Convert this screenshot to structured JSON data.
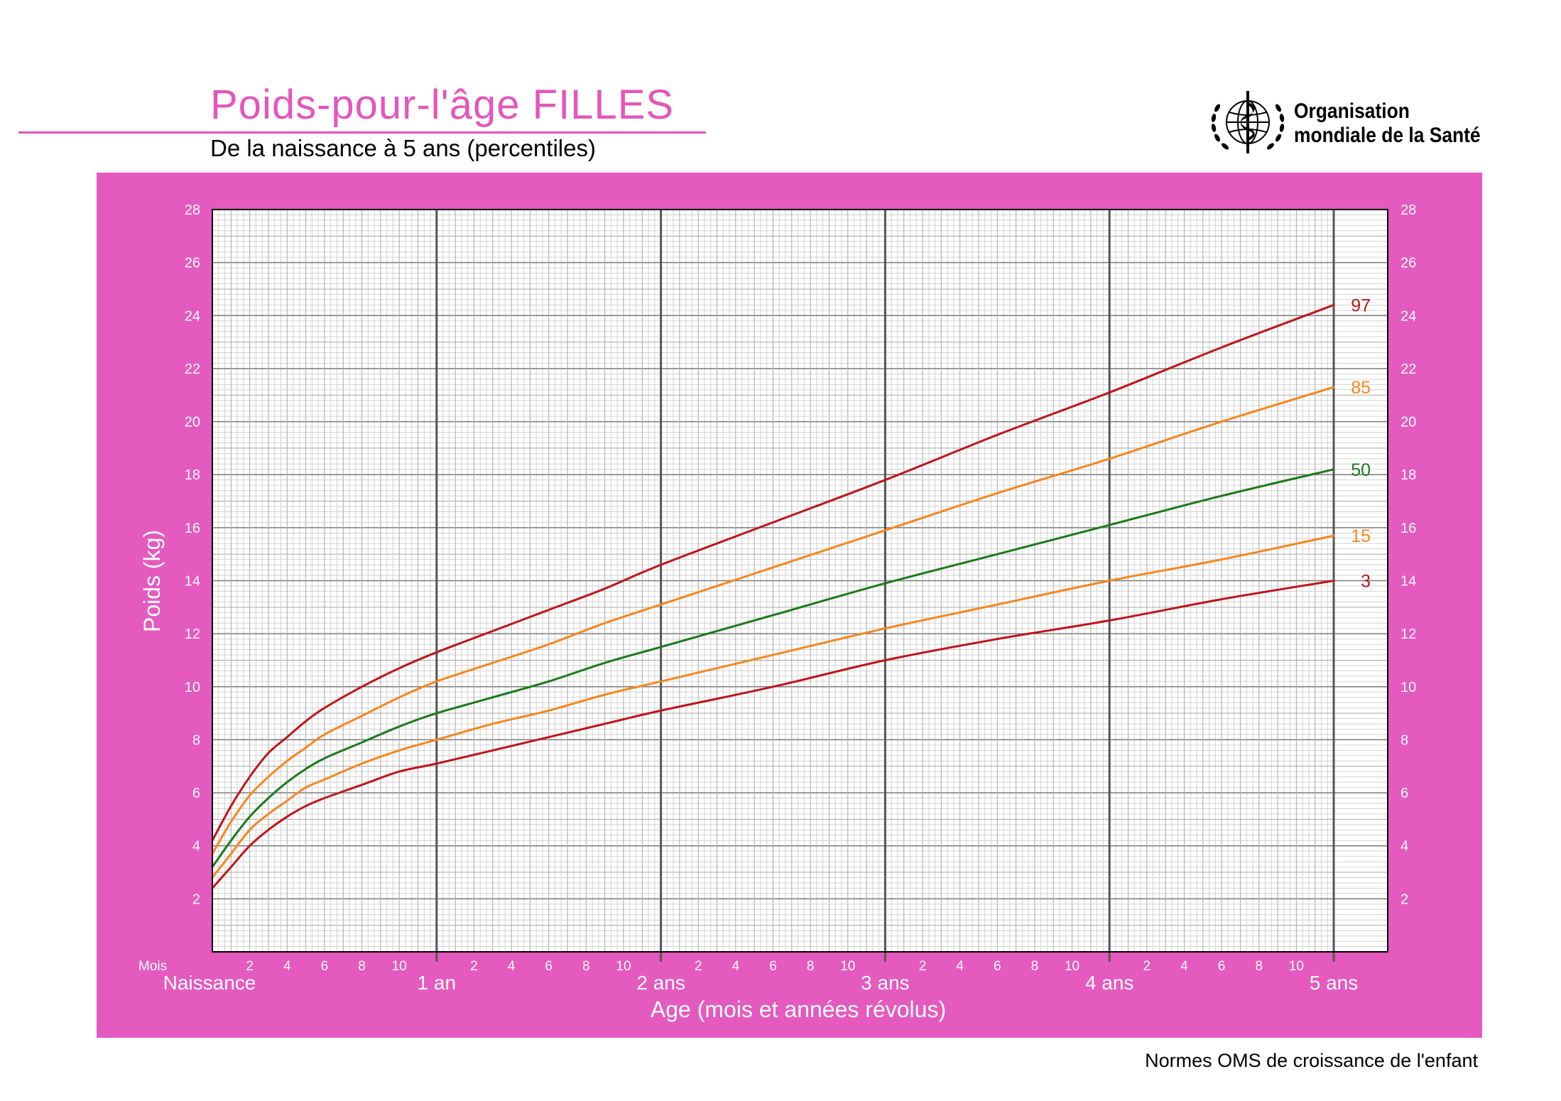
{
  "header": {
    "title": "Poids-pour-l'âge  FILLES",
    "subtitle": "De la naissance à 5 ans (percentiles)",
    "organisation_line1": "Organisation",
    "organisation_line2": "mondiale de la Santé",
    "logo_icon": "who-emblem-icon"
  },
  "footer": {
    "text": "Normes OMS de croissance de l'enfant"
  },
  "colors": {
    "title": "#e456bb",
    "panel": "#e45abf",
    "p3_p97": "#c0141c",
    "p15_p85": "#f7861d",
    "p50": "#1c7a1c"
  },
  "chart_data": {
    "type": "line",
    "title": "Poids-pour-l'âge  FILLES",
    "subtitle": "De la naissance à 5 ans (percentiles)",
    "xlabel": "Age (mois et années révolus)",
    "ylabel": "Poids (kg)",
    "month_axis_label": "Mois",
    "x_unit": "months",
    "xlim": [
      0,
      60
    ],
    "ylim": [
      0,
      28
    ],
    "y_ticks": [
      2,
      4,
      6,
      8,
      10,
      12,
      14,
      16,
      18,
      20,
      22,
      24,
      26,
      28
    ],
    "month_ticks": [
      2,
      4,
      6,
      8,
      10
    ],
    "year_ticks": [
      {
        "month": 0,
        "label": "Naissance"
      },
      {
        "month": 12,
        "label": "1 an"
      },
      {
        "month": 24,
        "label": "2 ans"
      },
      {
        "month": 36,
        "label": "3 ans"
      },
      {
        "month": 48,
        "label": "4 ans"
      },
      {
        "month": 60,
        "label": "5 ans"
      }
    ],
    "grid": true,
    "x": [
      0,
      1,
      2,
      3,
      4,
      5,
      6,
      8,
      10,
      12,
      15,
      18,
      21,
      24,
      30,
      36,
      42,
      48,
      54,
      60
    ],
    "series": [
      {
        "name": "97",
        "color": "#c0141c",
        "values": [
          4.2,
          5.5,
          6.6,
          7.5,
          8.1,
          8.7,
          9.2,
          10.0,
          10.7,
          11.3,
          12.1,
          12.9,
          13.7,
          14.6,
          16.2,
          17.8,
          19.5,
          21.1,
          22.8,
          24.4
        ]
      },
      {
        "name": "85",
        "color": "#f7861d",
        "values": [
          3.7,
          4.9,
          5.9,
          6.6,
          7.2,
          7.7,
          8.2,
          8.9,
          9.6,
          10.2,
          10.9,
          11.6,
          12.4,
          13.1,
          14.5,
          15.9,
          17.3,
          18.6,
          20.0,
          21.3
        ]
      },
      {
        "name": "50",
        "color": "#1c7a1c",
        "values": [
          3.2,
          4.2,
          5.1,
          5.8,
          6.4,
          6.9,
          7.3,
          7.9,
          8.5,
          9.0,
          9.6,
          10.2,
          10.9,
          11.5,
          12.7,
          13.9,
          15.0,
          16.1,
          17.2,
          18.2
        ]
      },
      {
        "name": "15",
        "color": "#f7861d",
        "values": [
          2.8,
          3.7,
          4.6,
          5.2,
          5.7,
          6.2,
          6.5,
          7.1,
          7.6,
          8.0,
          8.6,
          9.1,
          9.7,
          10.2,
          11.2,
          12.2,
          13.1,
          14.0,
          14.8,
          15.7
        ]
      },
      {
        "name": "3",
        "color": "#c0141c",
        "values": [
          2.4,
          3.2,
          4.0,
          4.6,
          5.1,
          5.5,
          5.8,
          6.3,
          6.8,
          7.1,
          7.6,
          8.1,
          8.6,
          9.1,
          10.0,
          11.0,
          11.8,
          12.5,
          13.3,
          14.0
        ]
      }
    ]
  }
}
